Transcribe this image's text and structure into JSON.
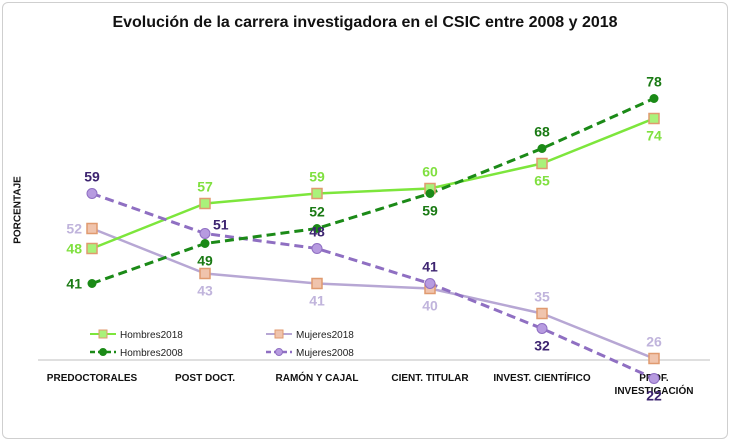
{
  "chart_data": {
    "type": "line",
    "title": "Evolución de la carrera investigadora en el CSIC entre 2008 y 2018",
    "xlabel": "",
    "ylabel": "PORCENTAJE",
    "categories": [
      "PREDOCTORALES",
      "POST DOCT.",
      "RAMÓN Y CAJAL",
      "CIENT. TITULAR",
      "INVEST. CIENTÍFICO",
      "PROF. INVESTIGACIÓN"
    ],
    "ylim": [
      0,
      90
    ],
    "grid": false,
    "legend_position": "bottom-left",
    "series": [
      {
        "name": "Hombres2018",
        "values": [
          48,
          57,
          59,
          60,
          65,
          74
        ],
        "color": "#7de63c",
        "marker_fill": "#a9f27a",
        "marker_stroke": "#e09a6f",
        "marker": "square",
        "dash": false,
        "label_color": "#80e040",
        "label_pos": [
          "left",
          "above",
          "above",
          "above",
          "below",
          "below"
        ]
      },
      {
        "name": "Mujeres2018",
        "values": [
          52,
          43,
          41,
          40,
          35,
          26
        ],
        "color": "#b7a7d4",
        "marker_fill": "#f0c4ad",
        "marker_stroke": "#e09a6f",
        "marker": "square",
        "dash": false,
        "label_color": "#c0b4dc",
        "label_pos": [
          "left",
          "below",
          "below",
          "below",
          "above",
          "above"
        ]
      },
      {
        "name": "Hombres2008",
        "values": [
          41,
          49,
          52,
          59,
          68,
          78
        ],
        "color": "#1b8a17",
        "marker_fill": "#1b8a17",
        "marker_stroke": "#1b8a17",
        "marker": "circle",
        "dash": true,
        "label_color": "#1a7a14",
        "label_pos": [
          "left",
          "below",
          "above",
          "below",
          "above",
          "above"
        ]
      },
      {
        "name": "Mujeres2008",
        "values": [
          59,
          51,
          48,
          41,
          32,
          22
        ],
        "color": "#8f6fc2",
        "marker_fill": "#b79be0",
        "marker_stroke": "#8f6fc2",
        "marker": "circle",
        "dash": true,
        "label_color": "#3d2470",
        "label_pos": [
          "above",
          "right",
          "above",
          "above",
          "below",
          "below"
        ]
      }
    ]
  }
}
